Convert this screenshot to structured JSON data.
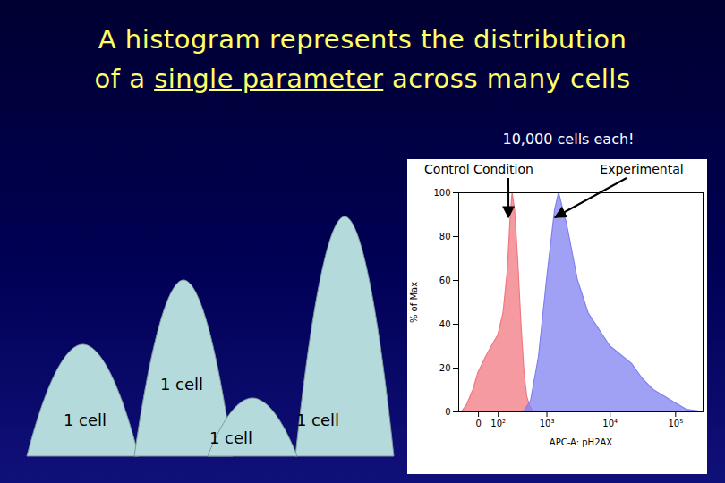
{
  "slide": {
    "title_lines": [
      "A histogram represents the distribution",
      "of a single parameter across many cells"
    ],
    "underlined": "single parameter"
  },
  "schematic": {
    "labels": [
      "1 cell",
      "1 cell",
      "1 cell",
      "1 cell"
    ]
  },
  "chart_data": {
    "type": "area",
    "title": "10,000 cells each!",
    "xlabel": "APC-A: pH2AX",
    "ylabel": "% of Max",
    "log": "x",
    "xlim": [
      -100,
      262144
    ],
    "xticks": [
      0,
      {
        "value": 100,
        "label": "10²"
      },
      {
        "value": 1000,
        "label": "10³"
      },
      {
        "value": 10000,
        "label": "10⁴"
      },
      {
        "value": 100000,
        "label": "10⁵"
      }
    ],
    "ylim": [
      0,
      100
    ],
    "yticks": [
      0,
      20,
      40,
      60,
      80,
      100
    ],
    "series": [
      {
        "name": "Control Condition",
        "color": "#f07880",
        "x": [
          -80,
          -50,
          -20,
          0,
          30,
          60,
          100,
          140,
          180,
          210,
          230,
          260,
          300,
          350,
          400,
          450,
          520,
          600
        ],
        "values": [
          0,
          3,
          10,
          18,
          25,
          30,
          35,
          45,
          65,
          90,
          100,
          92,
          70,
          40,
          18,
          7,
          2,
          0
        ]
      },
      {
        "name": "Experimental",
        "color": "#8080f0",
        "x": [
          390,
          530,
          730,
          1000,
          1360,
          1580,
          2150,
          3160,
          4640,
          10000,
          21500,
          31600,
          46400,
          100000,
          147000,
          262000
        ],
        "values": [
          0,
          5,
          25,
          60,
          92,
          100,
          85,
          60,
          45,
          30,
          22,
          15,
          10,
          4,
          1,
          0
        ]
      }
    ]
  }
}
